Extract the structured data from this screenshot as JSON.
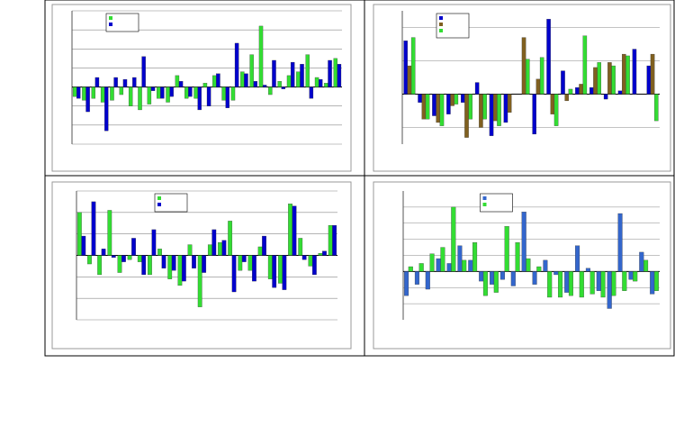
{
  "chart_data": [
    {
      "type": "bar",
      "ylim": [
        -3,
        4
      ],
      "yticks": [
        -3,
        -2,
        -1,
        0,
        1,
        2,
        3,
        4
      ],
      "grid": true,
      "tick_labels": false,
      "legend": "top-left",
      "series": [
        {
          "color": "#33dd33",
          "values": [
            -0.5,
            -0.7,
            -0.6,
            -0.8,
            -0.7,
            -0.4,
            -1,
            -1.2,
            -0.9,
            -0.6,
            -0.8,
            0.6,
            -0.6,
            -0.6,
            0.2,
            0.6,
            -0.7,
            -0.7,
            0.8,
            1.7,
            3.2,
            -0.4,
            0.3,
            0.6,
            0.8,
            1.7,
            0.5,
            0.2,
            1.5
          ]
        },
        {
          "color": "#0000cc",
          "values": [
            -0.6,
            -1.3,
            0.5,
            -2.3,
            0.5,
            0.4,
            0.5,
            1.6,
            -0.2,
            -0.6,
            -0.5,
            0.3,
            -0.5,
            -1.2,
            -1,
            0.7,
            -1.1,
            2.3,
            0.7,
            0.3,
            0.1,
            1.4,
            -0.1,
            1.3,
            1.2,
            -0.6,
            0.4,
            1.4,
            1.2
          ]
        }
      ]
    },
    {
      "type": "bar",
      "ylim": [
        -3,
        5
      ],
      "yticks": [
        -2,
        0,
        2,
        4
      ],
      "grid": true,
      "tick_labels": false,
      "legend": "top-left",
      "series": [
        {
          "color": "#0000cc",
          "values": [
            3.2,
            -0.5,
            -1.3,
            -1.2,
            -0.5,
            0.7,
            -2.5,
            -1.7,
            0,
            -2.4,
            4.5,
            1.4,
            0.4,
            0.4,
            -0.3,
            0.2,
            2.7,
            1.7
          ]
        },
        {
          "color": "#806020",
          "values": [
            1.7,
            -1.5,
            -1.7,
            -0.7,
            -2.6,
            -2,
            -1.6,
            -1.1,
            3.4,
            0.9,
            -1.2,
            -0.4,
            0.6,
            1.6,
            1.9,
            2.4,
            0,
            2.4
          ]
        },
        {
          "color": "#33dd33",
          "values": [
            3.4,
            -1.5,
            -1.9,
            -0.6,
            -1.5,
            -1.5,
            -1.9,
            0,
            2.1,
            2.2,
            -1.9,
            0.3,
            3.5,
            1.9,
            1.7,
            2.3,
            0,
            -1.6
          ]
        }
      ]
    },
    {
      "type": "bar",
      "ylim": [
        -3,
        3
      ],
      "yticks": [
        -3,
        -2,
        -1,
        0,
        1,
        2,
        3
      ],
      "grid": true,
      "tick_labels": false,
      "legend": "top-right",
      "series": [
        {
          "color": "#33dd33",
          "values": [
            2,
            -0.4,
            -0.9,
            2.1,
            -0.8,
            -0.2,
            -0.3,
            -0.9,
            0.3,
            -1.1,
            -1.4,
            0.5,
            -2.4,
            0.5,
            0.6,
            1.6,
            -0.7,
            -0.7,
            0.4,
            -1.1,
            -1.3,
            2.4,
            0.8,
            -0.5,
            0.1,
            1.4
          ]
        },
        {
          "color": "#0000cc",
          "values": [
            0.9,
            2.5,
            0.3,
            -0.1,
            -0.3,
            0.8,
            -0.9,
            1.2,
            -0.6,
            -0.7,
            -1.2,
            -0.6,
            -0.8,
            1.2,
            0.7,
            -1.7,
            -0.3,
            -1.2,
            0.9,
            -1.5,
            -1.6,
            2.3,
            -0.2,
            -0.9,
            0.2,
            1.4
          ]
        }
      ]
    },
    {
      "type": "bar",
      "ylim": [
        -3,
        5
      ],
      "yticks": [
        -2,
        -1,
        0,
        1,
        2,
        3,
        4
      ],
      "grid": true,
      "tick_labels": false,
      "legend": "top-right",
      "series": [
        {
          "color": "#3366cc",
          "values": [
            -1.5,
            -0.8,
            -1.1,
            0.8,
            0.5,
            1.6,
            0.7,
            -0.6,
            -0.8,
            -0.5,
            -0.9,
            3.7,
            -0.8,
            0.7,
            -0.2,
            -1.3,
            1.6,
            0.2,
            -1.2,
            -2.3,
            3.6,
            -0.5,
            1.2,
            -1.4
          ]
        },
        {
          "color": "#33dd33",
          "values": [
            0.3,
            0.5,
            1.1,
            1.5,
            4,
            0.7,
            1.8,
            -1.5,
            -1.3,
            2.8,
            1.8,
            0.8,
            0.3,
            -1.6,
            -1.6,
            -1.5,
            -1.6,
            -1.4,
            -1.6,
            -1.5,
            -1.2,
            -0.6,
            0.7,
            -1.2
          ]
        }
      ]
    }
  ]
}
